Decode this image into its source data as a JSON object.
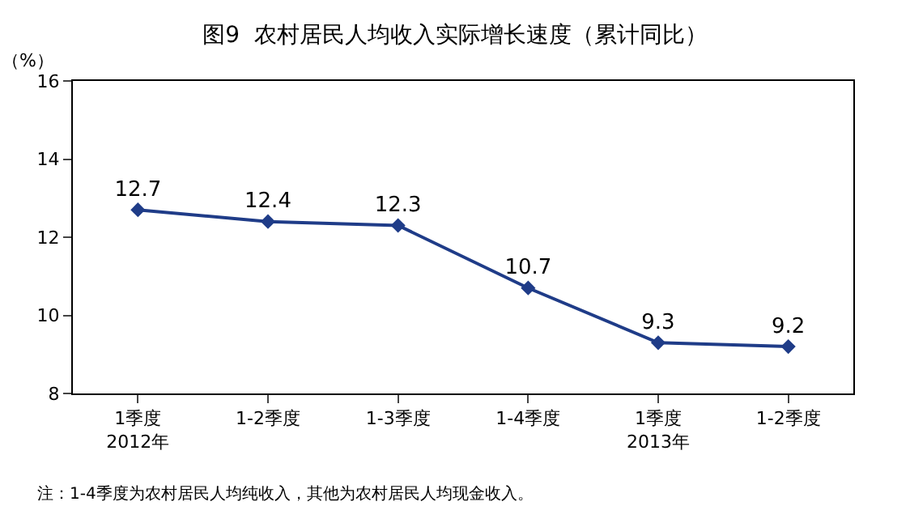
{
  "chart_data": {
    "type": "line",
    "title": "图9  农村居民人均收入实际增长速度（累计同比）",
    "ylabel": "（%）",
    "categories": [
      "1季度\n2012年",
      "1-2季度",
      "1-3季度",
      "1-4季度",
      "1季度\n2013年",
      "1-2季度"
    ],
    "series": [
      {
        "color": "#1f3c88",
        "values": [
          12.7,
          12.4,
          12.3,
          10.7,
          9.3,
          9.2
        ]
      }
    ],
    "ylim": [
      8,
      16
    ],
    "yticks": [
      8,
      10,
      12,
      14,
      16
    ],
    "legend": false,
    "marker": "diamond",
    "line_style": "solid",
    "data_labels": true,
    "annotations": [
      "注：1-4季度为农村居民人均纯收入，其他为农村居民人均现金收入。"
    ]
  }
}
